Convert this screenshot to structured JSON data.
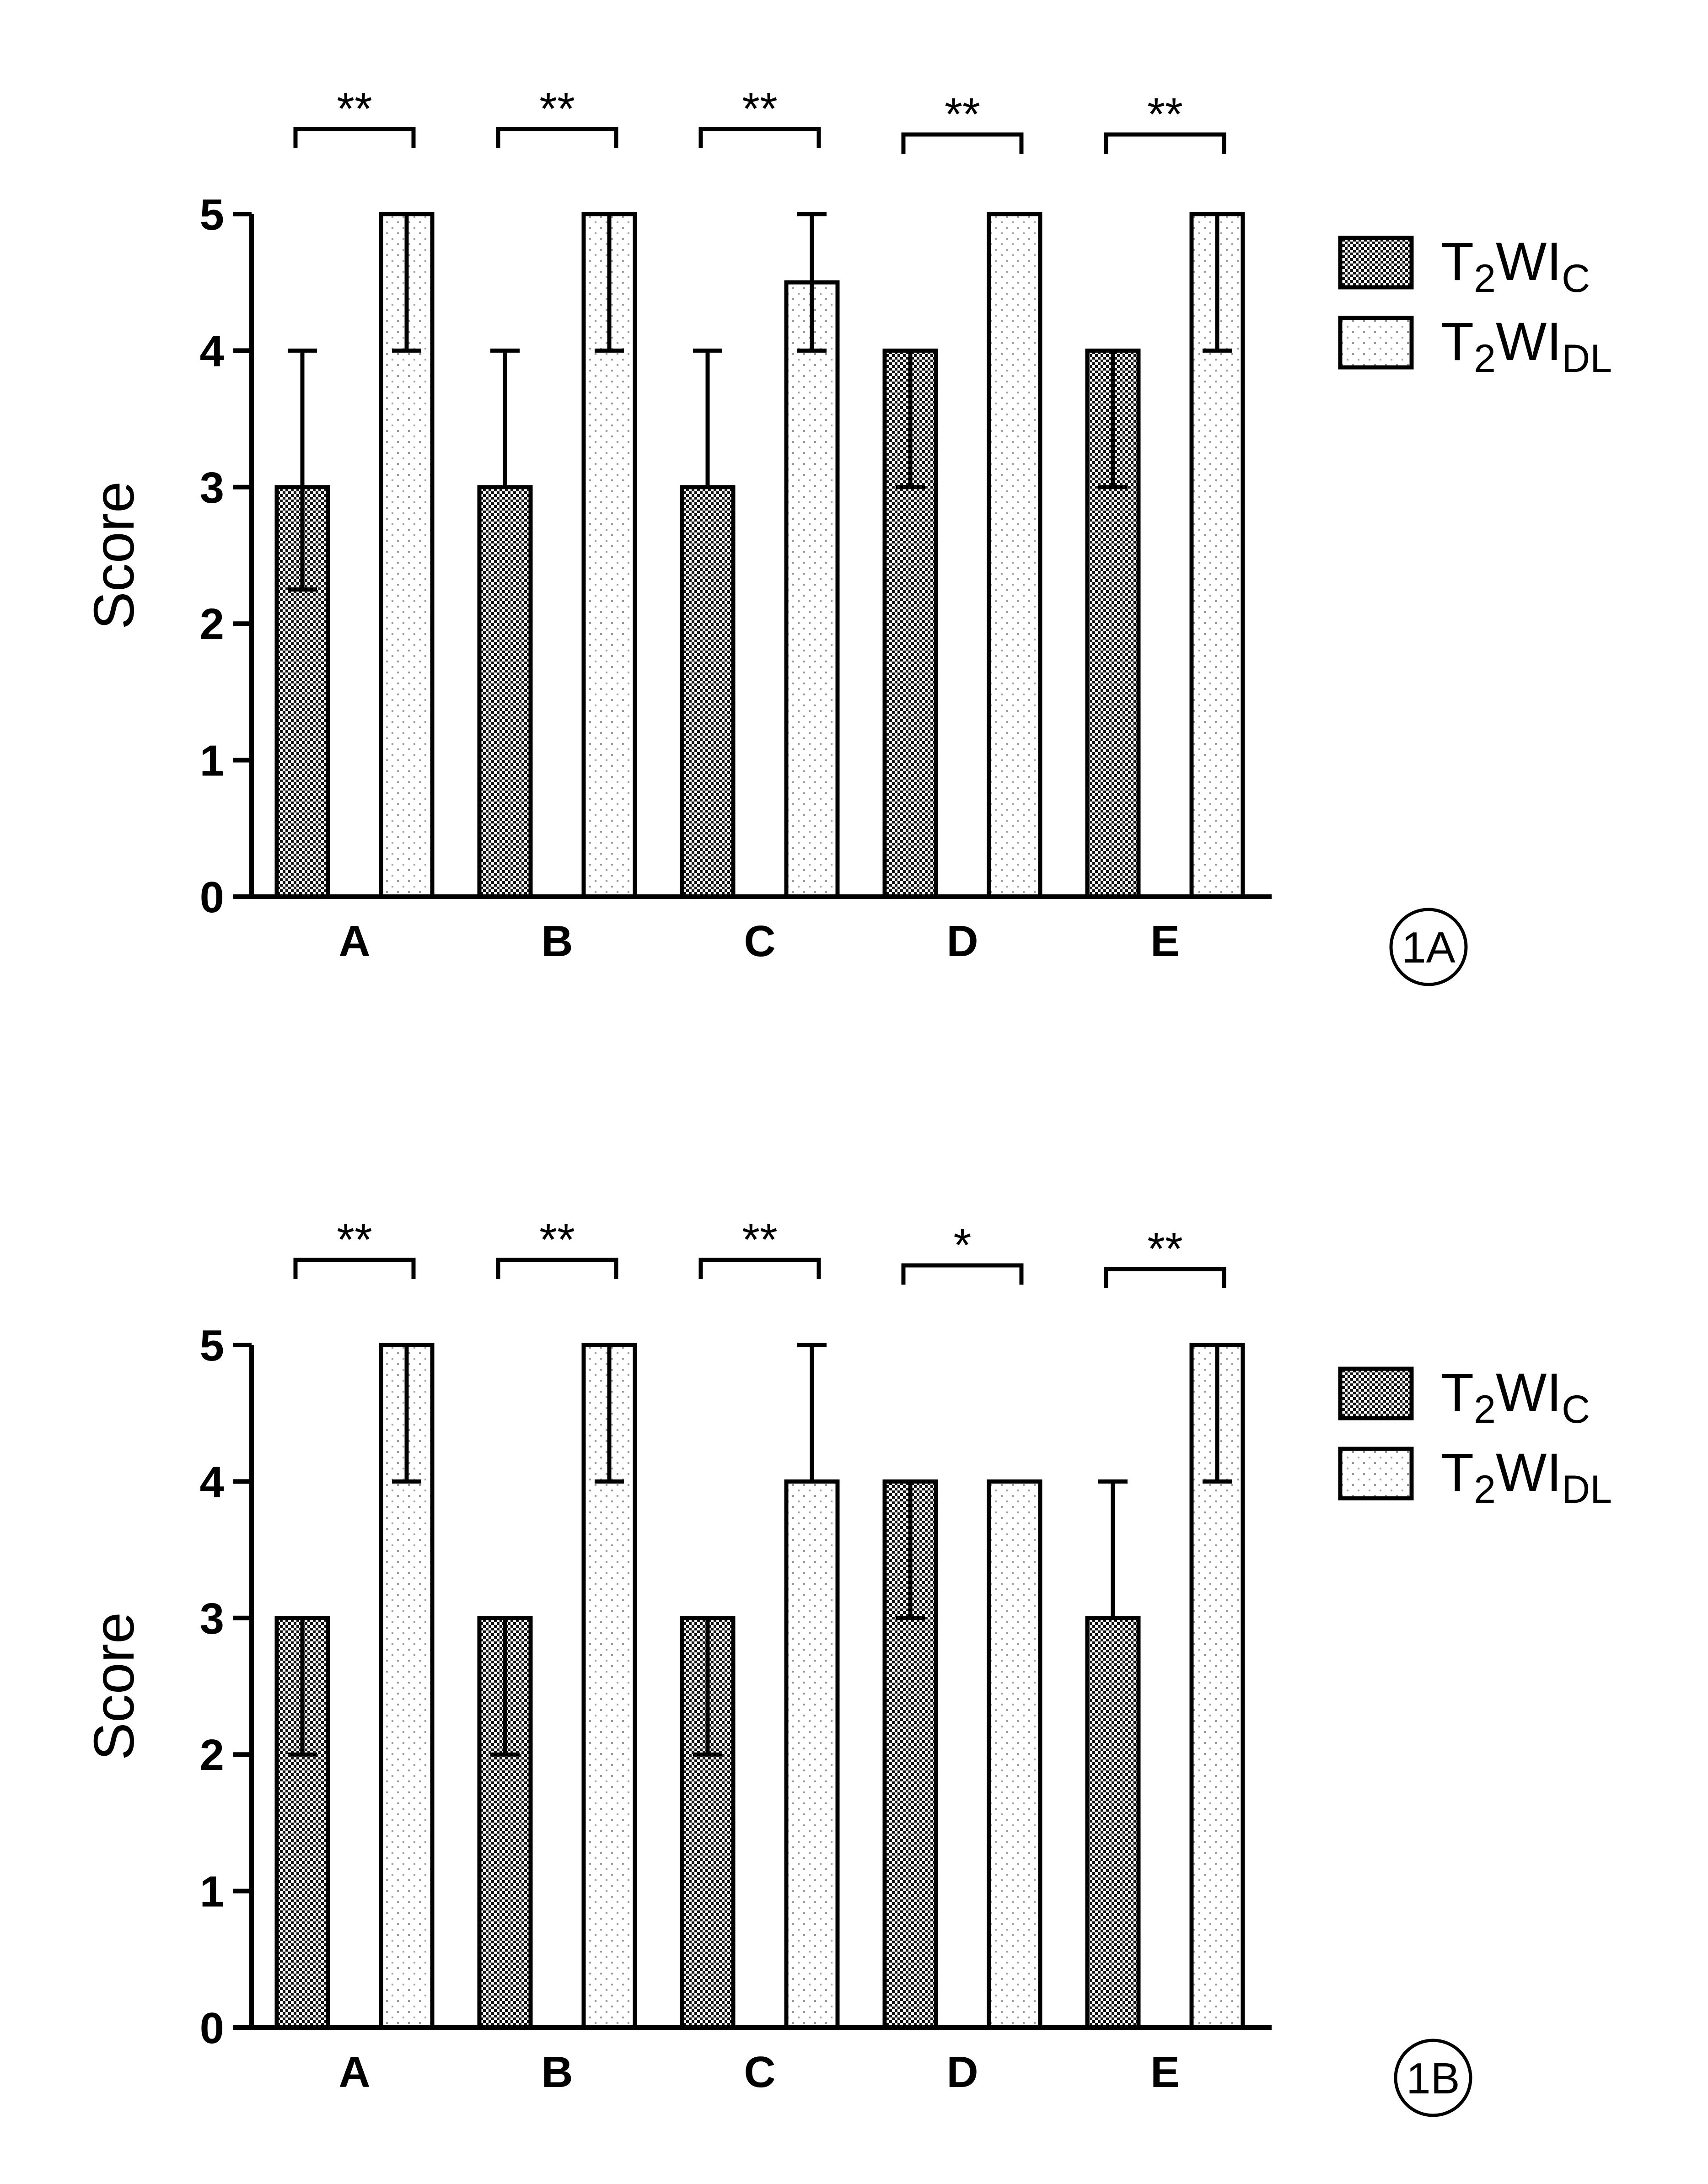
{
  "chart_data": [
    {
      "type": "bar",
      "panel_label": "1A",
      "ylabel": "Score",
      "xlabel": "",
      "ylim": [
        0,
        5
      ],
      "yticks": [
        "0",
        "1",
        "2",
        "3",
        "4",
        "5"
      ],
      "categories": [
        "A",
        "B",
        "C",
        "D",
        "E"
      ],
      "grid": false,
      "legend_position": "right",
      "series": [
        {
          "name": "T2WIC",
          "legend": {
            "base": "T",
            "sub1": "2",
            "mid": "WI",
            "sub2": "C"
          },
          "pattern": "checkered",
          "values": [
            3,
            3,
            3,
            4,
            4
          ],
          "error_low": [
            2.25,
            null,
            null,
            3,
            3
          ],
          "error_high": [
            4,
            4,
            4,
            null,
            null
          ]
        },
        {
          "name": "T2WIDL",
          "legend": {
            "base": "T",
            "sub1": "2",
            "mid": "WI",
            "sub2": "DL"
          },
          "pattern": "dotted",
          "values": [
            5,
            5,
            4.5,
            5,
            5
          ],
          "error_low": [
            4,
            4,
            4,
            null,
            4
          ],
          "error_high": [
            null,
            null,
            5,
            null,
            null
          ]
        }
      ],
      "significance": [
        "**",
        "**",
        "**",
        "**",
        "**"
      ]
    },
    {
      "type": "bar",
      "panel_label": "1B",
      "ylabel": "Score",
      "xlabel": "",
      "ylim": [
        0,
        5
      ],
      "yticks": [
        "0",
        "1",
        "2",
        "3",
        "4",
        "5"
      ],
      "categories": [
        "A",
        "B",
        "C",
        "D",
        "E"
      ],
      "grid": false,
      "legend_position": "right",
      "series": [
        {
          "name": "T2WIC",
          "legend": {
            "base": "T",
            "sub1": "2",
            "mid": "WI",
            "sub2": "C"
          },
          "pattern": "checkered",
          "values": [
            3,
            3,
            3,
            4,
            3
          ],
          "error_low": [
            2,
            2,
            2,
            3,
            null
          ],
          "error_high": [
            null,
            null,
            null,
            null,
            4
          ]
        },
        {
          "name": "T2WIDL",
          "legend": {
            "base": "T",
            "sub1": "2",
            "mid": "WI",
            "sub2": "DL"
          },
          "pattern": "dotted",
          "values": [
            5,
            5,
            4,
            4,
            5
          ],
          "error_low": [
            4,
            4,
            null,
            null,
            4
          ],
          "error_high": [
            null,
            null,
            5,
            null,
            null
          ]
        }
      ],
      "significance": [
        "**",
        "**",
        "**",
        "*",
        "**"
      ]
    }
  ]
}
